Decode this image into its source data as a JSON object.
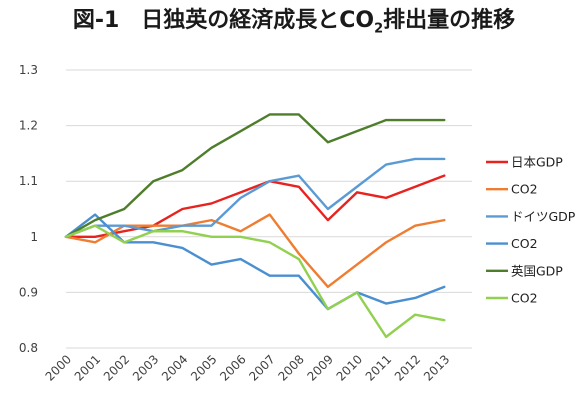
{
  "chart_data": {
    "type": "line",
    "title_main": "図-1　日独英の経済成長とCO",
    "title_sub": "2",
    "title_tail": "排出量の推移",
    "x": [
      "2000",
      "2001",
      "2002",
      "2003",
      "2004",
      "2005",
      "2006",
      "2007",
      "2008",
      "2009",
      "2010",
      "2011",
      "2012",
      "2013"
    ],
    "ylim": [
      0.8,
      1.3
    ],
    "yticks": [
      "0.8",
      "0.9",
      "1",
      "1.1",
      "1.2",
      "1.3"
    ],
    "grid": true,
    "legend_position": "right",
    "series": [
      {
        "name": "日本GDP",
        "color": "#e8231f",
        "values": [
          1.0,
          1.0,
          1.01,
          1.02,
          1.05,
          1.06,
          1.08,
          1.1,
          1.09,
          1.03,
          1.08,
          1.07,
          1.09,
          1.11
        ]
      },
      {
        "name": "CO2",
        "color": "#ef7d31",
        "values": [
          1.0,
          0.99,
          1.02,
          1.02,
          1.02,
          1.03,
          1.01,
          1.04,
          0.97,
          0.91,
          0.95,
          0.99,
          1.02,
          1.03
        ]
      },
      {
        "name": "ドイツGDP",
        "color": "#5b9bd5",
        "values": [
          1.0,
          1.02,
          1.02,
          1.01,
          1.02,
          1.02,
          1.07,
          1.1,
          1.11,
          1.05,
          1.09,
          1.13,
          1.14,
          1.14
        ]
      },
      {
        "name": "CO2",
        "color": "#4a8fd0",
        "values": [
          1.0,
          1.04,
          0.99,
          0.99,
          0.98,
          0.95,
          0.96,
          0.93,
          0.93,
          0.87,
          0.9,
          0.88,
          0.89,
          0.91
        ]
      },
      {
        "name": "英国GDP",
        "color": "#4e7d2b",
        "values": [
          1.0,
          1.03,
          1.05,
          1.1,
          1.12,
          1.16,
          1.19,
          1.22,
          1.22,
          1.17,
          1.19,
          1.21,
          1.21,
          1.21
        ]
      },
      {
        "name": "CO2",
        "color": "#92d050",
        "values": [
          1.0,
          1.02,
          0.99,
          1.01,
          1.01,
          1.0,
          1.0,
          0.99,
          0.96,
          0.87,
          0.9,
          0.82,
          0.86,
          0.85
        ]
      }
    ]
  }
}
